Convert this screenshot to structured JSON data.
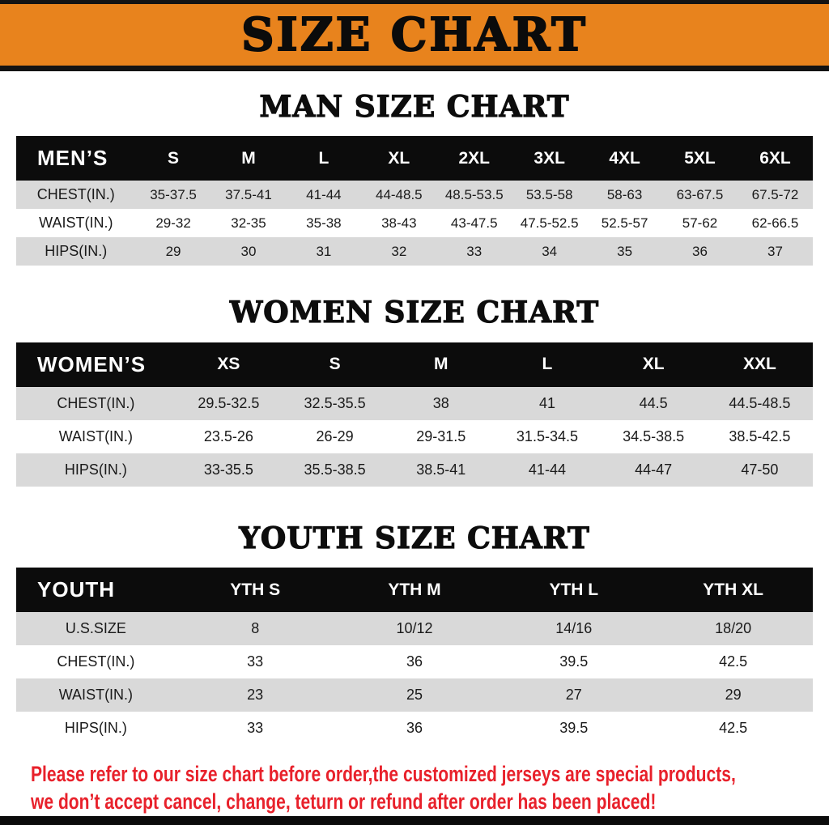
{
  "page": {
    "banner_title": "SIZE CHART",
    "colors": {
      "banner_bg": "#E8831D",
      "table_header_bg": "#0C0C0C",
      "row_alt_bg": "#D9D9D9",
      "disclaimer_red": "#E8212B"
    }
  },
  "sections": [
    {
      "heading": "MAN SIZE CHART",
      "table": {
        "header": [
          "MEN’S",
          "S",
          "M",
          "L",
          "XL",
          "2XL",
          "3XL",
          "4XL",
          "5XL",
          "6XL"
        ],
        "rows": [
          [
            "CHEST(IN.)",
            "35-37.5",
            "37.5-41",
            "41-44",
            "44-48.5",
            "48.5-53.5",
            "53.5-58",
            "58-63",
            "63-67.5",
            "67.5-72"
          ],
          [
            "WAIST(IN.)",
            "29-32",
            "32-35",
            "35-38",
            "38-43",
            "43-47.5",
            "47.5-52.5",
            "52.5-57",
            "57-62",
            "62-66.5"
          ],
          [
            "HIPS(IN.)",
            "29",
            "30",
            "31",
            "32",
            "33",
            "34",
            "35",
            "36",
            "37"
          ]
        ]
      }
    },
    {
      "heading": "WOMEN SIZE CHART",
      "table": {
        "header": [
          "WOMEN’S",
          "XS",
          "S",
          "M",
          "L",
          "XL",
          "XXL"
        ],
        "rows": [
          [
            "CHEST(IN.)",
            "29.5-32.5",
            "32.5-35.5",
            "38",
            "41",
            "44.5",
            "44.5-48.5"
          ],
          [
            "WAIST(IN.)",
            "23.5-26",
            "26-29",
            "29-31.5",
            "31.5-34.5",
            "34.5-38.5",
            "38.5-42.5"
          ],
          [
            "HIPS(IN.)",
            "33-35.5",
            "35.5-38.5",
            "38.5-41",
            "41-44",
            "44-47",
            "47-50"
          ]
        ]
      }
    },
    {
      "heading": "YOUTH SIZE CHART",
      "table": {
        "header": [
          "YOUTH",
          "YTH S",
          "YTH M",
          "YTH L",
          "YTH XL"
        ],
        "rows": [
          [
            "U.S.SIZE",
            "8",
            "10/12",
            "14/16",
            "18/20"
          ],
          [
            "CHEST(IN.)",
            "33",
            "36",
            "39.5",
            "42.5"
          ],
          [
            "WAIST(IN.)",
            "23",
            "25",
            "27",
            "29"
          ],
          [
            "HIPS(IN.)",
            "33",
            "36",
            "39.5",
            "42.5"
          ]
        ]
      }
    }
  ],
  "disclaimer": {
    "line1": "Please refer to our size chart before order,the customized jerseys are special products,",
    "line2": "we don’t accept cancel, change, teturn or refund after order has been placed!"
  }
}
